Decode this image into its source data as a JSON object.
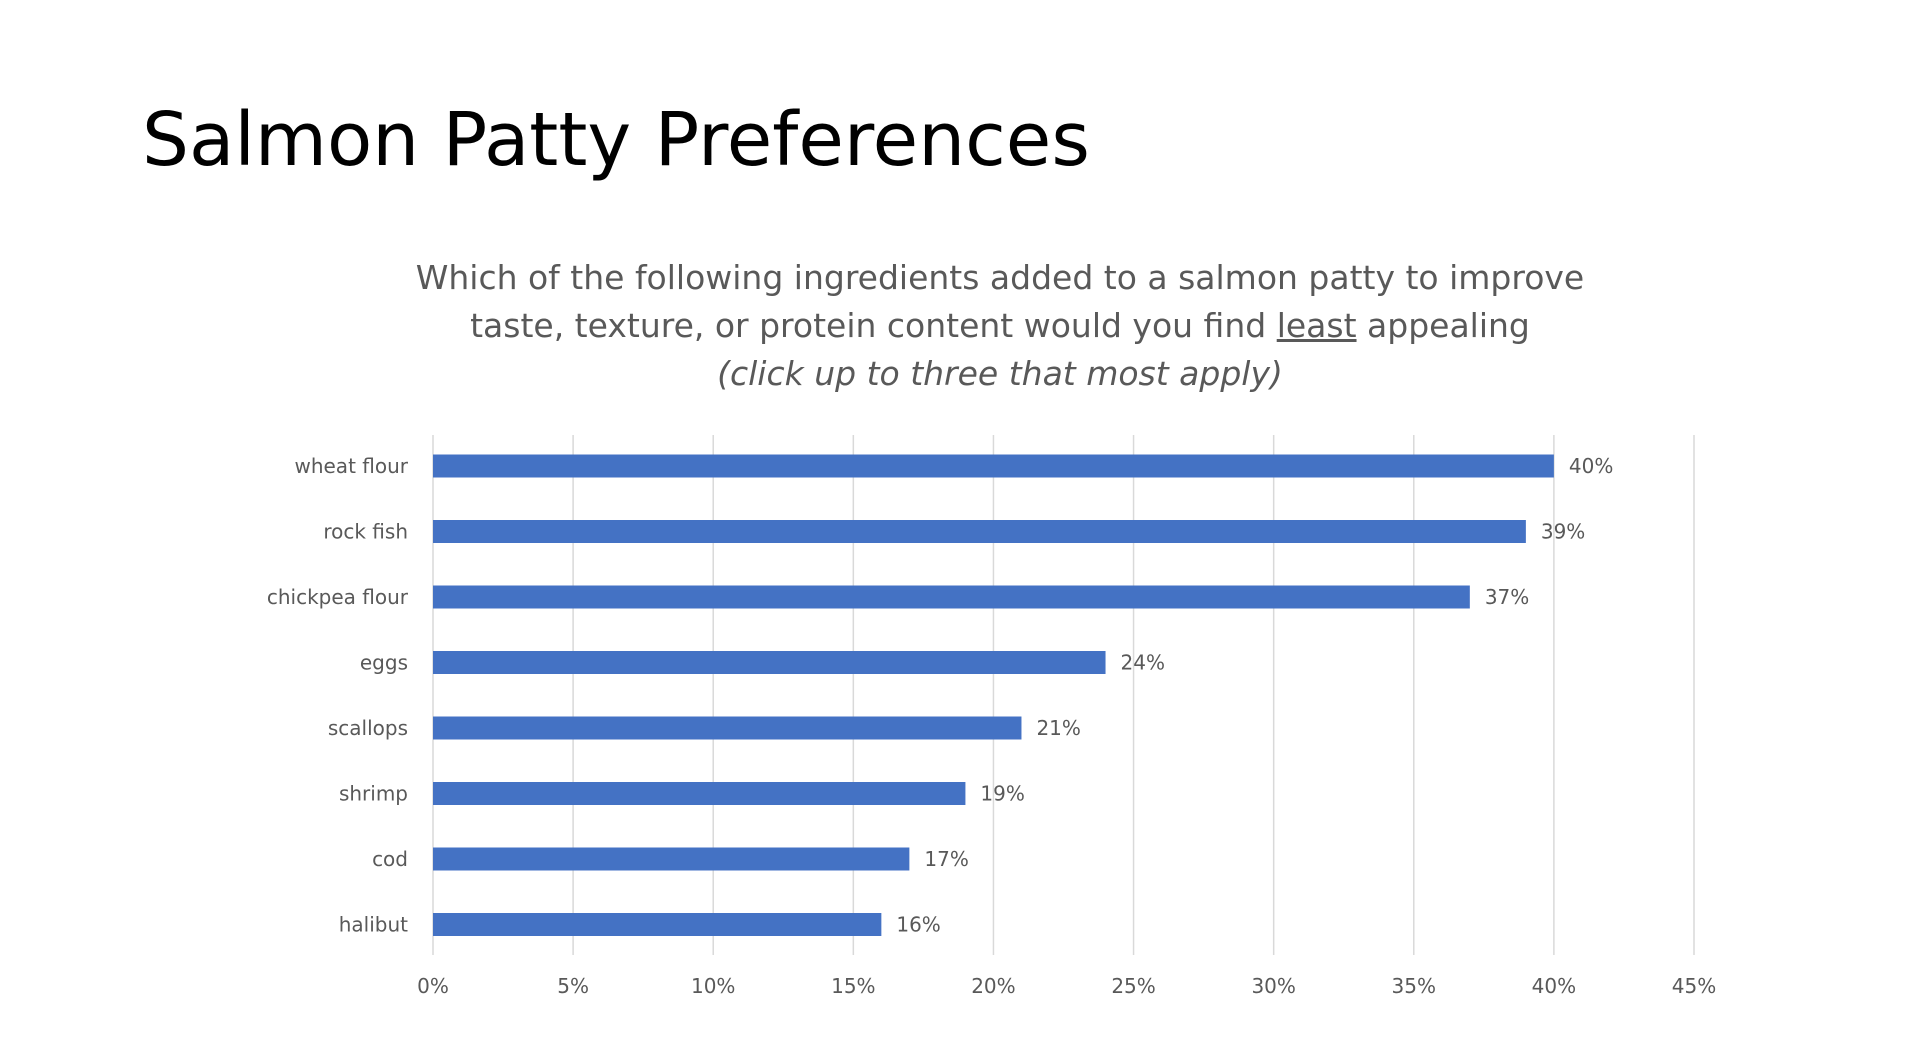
{
  "slide": {
    "title": "Salmon Patty Preferences"
  },
  "chart_data": {
    "type": "bar",
    "orientation": "horizontal",
    "title_parts": [
      "Which of the following ingredients added to a salmon patty to improve",
      "taste, texture, or protein content would you find",
      "least",
      "appealing"
    ],
    "subtitle": "(click up to three that most apply)",
    "categories": [
      "wheat flour",
      "rock fish",
      "chickpea flour",
      "eggs",
      "scallops",
      "shrimp",
      "cod",
      "halibut"
    ],
    "values": [
      40,
      39,
      37,
      24,
      21,
      19,
      17,
      16
    ],
    "data_labels": [
      "40%",
      "39%",
      "37%",
      "24%",
      "21%",
      "19%",
      "17%",
      "16%"
    ],
    "x_ticks": [
      0,
      5,
      10,
      15,
      20,
      25,
      30,
      35,
      40,
      45
    ],
    "x_tick_labels": [
      "0%",
      "5%",
      "10%",
      "15%",
      "20%",
      "25%",
      "30%",
      "35%",
      "40%",
      "45%"
    ],
    "xlim": [
      0,
      45
    ],
    "xlabel": "",
    "ylabel": "",
    "grid": "vertical",
    "legend": "none",
    "bar_color": "#4472C4",
    "grid_color": "#D9D9D9",
    "text_color": "#595959"
  }
}
